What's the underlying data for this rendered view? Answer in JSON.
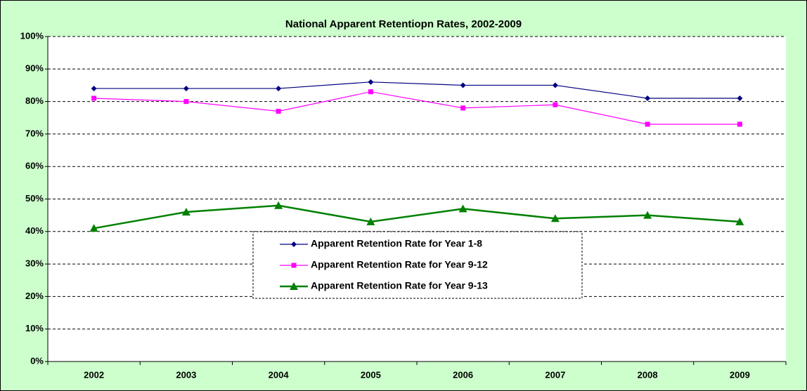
{
  "chart_data": {
    "type": "line",
    "title": "National Apparent Retentiopn Rates, 2002-2009",
    "categories": [
      "2002",
      "2003",
      "2004",
      "2005",
      "2006",
      "2007",
      "2008",
      "2009"
    ],
    "series": [
      {
        "name": "Apparent Retention Rate for Year 1-8",
        "color": "#000080",
        "marker": "diamond",
        "values": [
          84,
          84,
          84,
          86,
          85,
          85,
          81,
          81
        ]
      },
      {
        "name": "Apparent Retention Rate for Year 9-12",
        "color": "#ff00ff",
        "marker": "square",
        "values": [
          81,
          80,
          77,
          83,
          78,
          79,
          73,
          73
        ]
      },
      {
        "name": "Apparent Retention Rate for Year 9-13",
        "color": "#008000",
        "marker": "triangle",
        "values": [
          41,
          46,
          48,
          43,
          47,
          44,
          45,
          43
        ]
      }
    ],
    "ylim": [
      0,
      100
    ],
    "yticks": [
      {
        "value": 0,
        "label": "0%"
      },
      {
        "value": 10,
        "label": "10%"
      },
      {
        "value": 20,
        "label": "20%"
      },
      {
        "value": 30,
        "label": "30%"
      },
      {
        "value": 40,
        "label": "40%"
      },
      {
        "value": 50,
        "label": "50%"
      },
      {
        "value": 60,
        "label": "60%"
      },
      {
        "value": 70,
        "label": "70%"
      },
      {
        "value": 80,
        "label": "80%"
      },
      {
        "value": 90,
        "label": "90%"
      },
      {
        "value": 100,
        "label": "100%"
      }
    ],
    "grid": true
  }
}
